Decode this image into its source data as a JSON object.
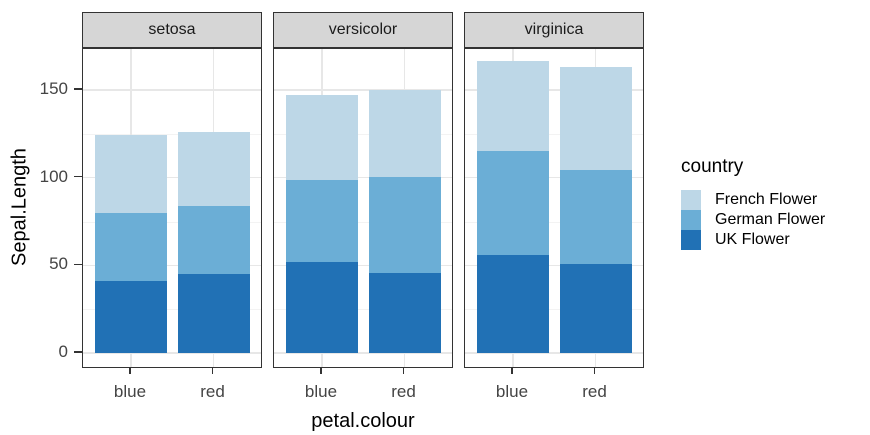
{
  "chart_data": {
    "type": "bar",
    "stacked": true,
    "facet_variable_values": [
      "setosa",
      "versicolor",
      "virginica"
    ],
    "categories": [
      "blue",
      "red"
    ],
    "series": [
      {
        "name": "UK Flower",
        "color": "#2171B5",
        "values": [
          [
            41.0,
            44.9
          ],
          [
            51.7,
            45.4
          ],
          [
            55.7,
            50.8
          ]
        ]
      },
      {
        "name": "German Flower",
        "color": "#6BAED6",
        "values": [
          [
            38.9,
            39.1
          ],
          [
            46.9,
            55.0
          ],
          [
            59.6,
            53.4
          ]
        ]
      },
      {
        "name": "French Flower",
        "color": "#BDD7E7",
        "values": [
          [
            44.5,
            41.9
          ],
          [
            48.4,
            49.4
          ],
          [
            51.2,
            58.7
          ]
        ]
      }
    ],
    "stack_totals": [
      [
        124.4,
        125.9
      ],
      [
        147.0,
        149.8
      ],
      [
        166.5,
        162.9
      ]
    ],
    "x_axis": {
      "title": "petal.colour"
    },
    "y_axis": {
      "title": "Sepal.Length",
      "tick_values": [
        0,
        50,
        100,
        150
      ],
      "tick_labels": [
        "0",
        "50",
        "100",
        "150"
      ],
      "minor_tick_values": [
        25,
        75,
        125
      ],
      "range": [
        0,
        175
      ]
    },
    "legend": {
      "title": "country",
      "entries": [
        "French Flower",
        "German Flower",
        "UK Flower"
      ],
      "position": "right"
    },
    "grid": "on",
    "theme_colors": {
      "strip_background": "#D6D6D6",
      "panel_border": "#333333",
      "grid_major": "#E7E7E7",
      "grid_minor": "#F3F3F3",
      "axis_text": "#444444",
      "background": "#FFFFFF"
    }
  }
}
